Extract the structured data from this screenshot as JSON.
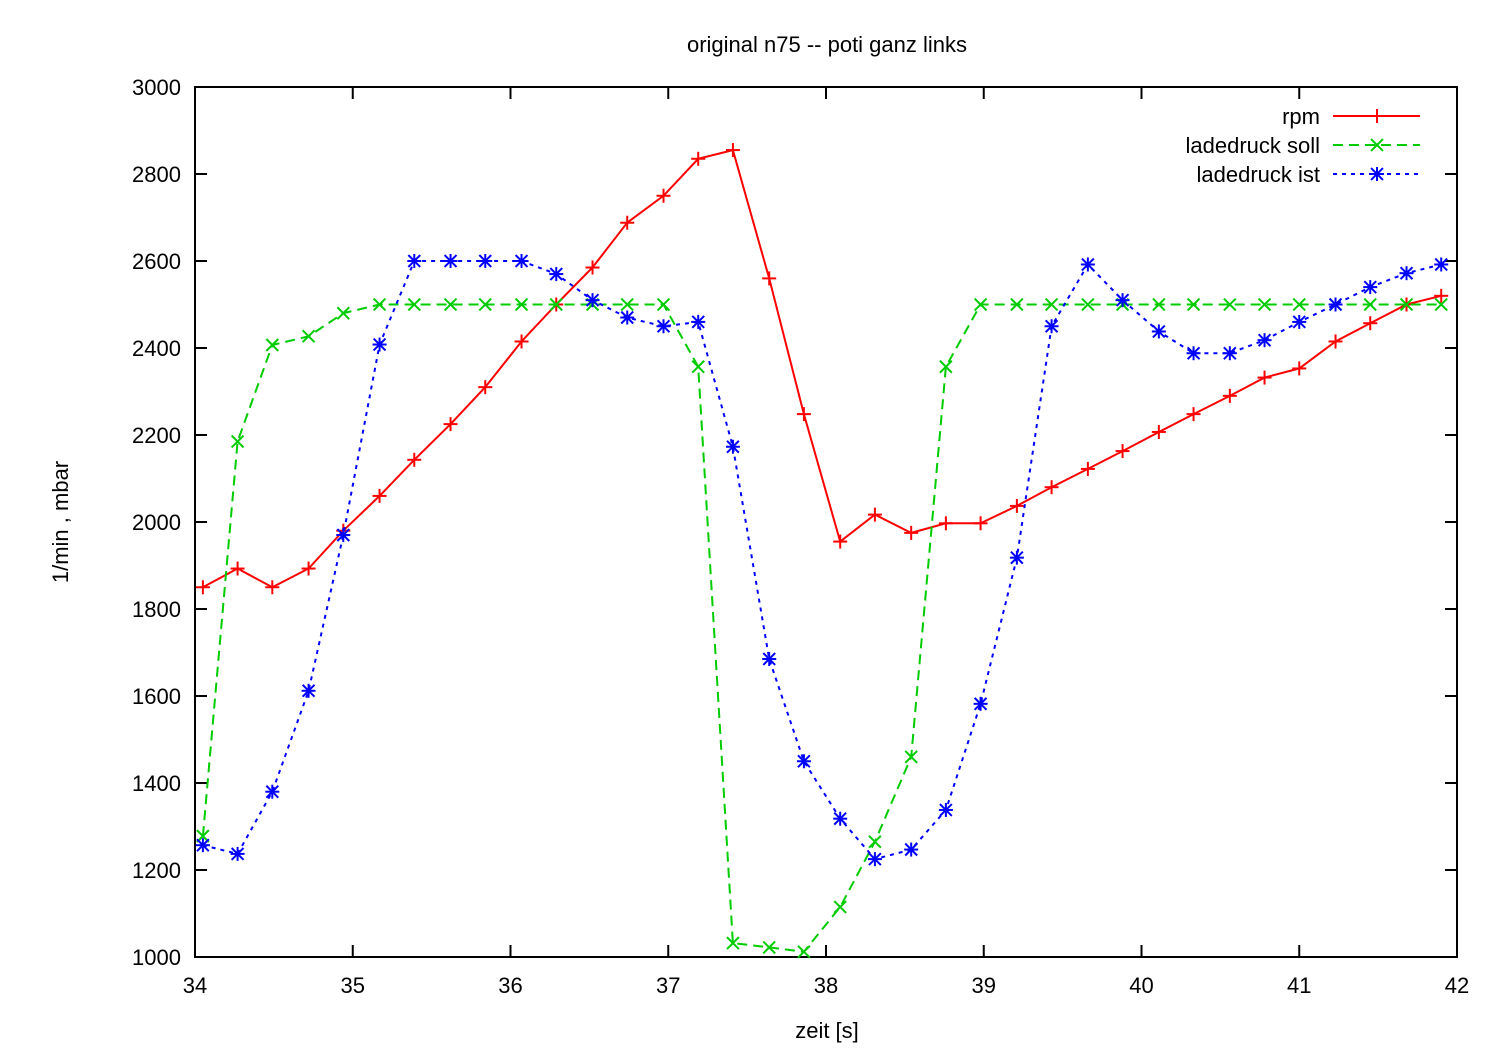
{
  "chart_data": {
    "type": "line",
    "title": "original n75 -- poti ganz links",
    "xlabel": "zeit [s]",
    "ylabel": "1/min , mbar",
    "xlim": [
      34,
      42
    ],
    "ylim": [
      1000,
      3000
    ],
    "xticks": [
      34,
      35,
      36,
      37,
      38,
      39,
      40,
      41,
      42
    ],
    "yticks": [
      1000,
      1200,
      1400,
      1600,
      1800,
      2000,
      2200,
      2400,
      2600,
      2800,
      3000
    ],
    "grid": false,
    "legend_position": "top-right",
    "series": [
      {
        "name": "rpm",
        "color": "#ff0000",
        "dash": "solid",
        "marker": "plus",
        "points": [
          [
            34.05,
            1850
          ],
          [
            34.27,
            1893
          ],
          [
            34.49,
            1850
          ],
          [
            34.72,
            1893
          ],
          [
            34.94,
            1980
          ],
          [
            35.17,
            2060
          ],
          [
            35.39,
            2143
          ],
          [
            35.62,
            2225
          ],
          [
            35.84,
            2310
          ],
          [
            36.07,
            2415
          ],
          [
            36.29,
            2500
          ],
          [
            36.52,
            2585
          ],
          [
            36.74,
            2688
          ],
          [
            36.97,
            2750
          ],
          [
            37.19,
            2835
          ],
          [
            37.41,
            2855
          ],
          [
            37.64,
            2560
          ],
          [
            37.86,
            2248
          ],
          [
            38.09,
            1955
          ],
          [
            38.31,
            2017
          ],
          [
            38.54,
            1975
          ],
          [
            38.76,
            1997
          ],
          [
            38.98,
            1997
          ],
          [
            39.21,
            2037
          ],
          [
            39.43,
            2080
          ],
          [
            39.66,
            2122
          ],
          [
            39.88,
            2163
          ],
          [
            40.11,
            2207
          ],
          [
            40.33,
            2248
          ],
          [
            40.56,
            2290
          ],
          [
            40.78,
            2332
          ],
          [
            41.0,
            2353
          ],
          [
            41.23,
            2415
          ],
          [
            41.45,
            2457
          ],
          [
            41.68,
            2500
          ],
          [
            41.9,
            2520
          ]
        ]
      },
      {
        "name": "ladedruck soll",
        "color": "#00cc00",
        "dash": "dashed",
        "marker": "cross",
        "points": [
          [
            34.05,
            1278
          ],
          [
            34.27,
            2185
          ],
          [
            34.49,
            2407
          ],
          [
            34.72,
            2427
          ],
          [
            34.94,
            2480
          ],
          [
            35.17,
            2500
          ],
          [
            35.39,
            2500
          ],
          [
            35.62,
            2500
          ],
          [
            35.84,
            2500
          ],
          [
            36.07,
            2500
          ],
          [
            36.29,
            2500
          ],
          [
            36.52,
            2500
          ],
          [
            36.74,
            2500
          ],
          [
            36.97,
            2500
          ],
          [
            37.19,
            2357
          ],
          [
            37.41,
            1032
          ],
          [
            37.64,
            1022
          ],
          [
            37.86,
            1012
          ],
          [
            38.09,
            1115
          ],
          [
            38.31,
            1265
          ],
          [
            38.54,
            1460
          ],
          [
            38.76,
            2357
          ],
          [
            38.98,
            2500
          ],
          [
            39.21,
            2500
          ],
          [
            39.43,
            2500
          ],
          [
            39.66,
            2500
          ],
          [
            39.88,
            2500
          ],
          [
            40.11,
            2500
          ],
          [
            40.33,
            2500
          ],
          [
            40.56,
            2500
          ],
          [
            40.78,
            2500
          ],
          [
            41.0,
            2500
          ],
          [
            41.23,
            2500
          ],
          [
            41.45,
            2500
          ],
          [
            41.68,
            2500
          ],
          [
            41.9,
            2500
          ]
        ]
      },
      {
        "name": "ladedruck ist",
        "color": "#0000ff",
        "dash": "dotted",
        "marker": "star",
        "points": [
          [
            34.05,
            1257
          ],
          [
            34.27,
            1237
          ],
          [
            34.49,
            1380
          ],
          [
            34.72,
            1612
          ],
          [
            34.94,
            1970
          ],
          [
            35.17,
            2408
          ],
          [
            35.39,
            2600
          ],
          [
            35.62,
            2600
          ],
          [
            35.84,
            2600
          ],
          [
            36.07,
            2600
          ],
          [
            36.29,
            2570
          ],
          [
            36.52,
            2510
          ],
          [
            36.74,
            2470
          ],
          [
            36.97,
            2450
          ],
          [
            37.19,
            2460
          ],
          [
            37.41,
            2173
          ],
          [
            37.64,
            1685
          ],
          [
            37.86,
            1450
          ],
          [
            38.09,
            1318
          ],
          [
            38.31,
            1225
          ],
          [
            38.54,
            1247
          ],
          [
            38.76,
            1338
          ],
          [
            38.98,
            1582
          ],
          [
            39.21,
            1918
          ],
          [
            39.43,
            2450
          ],
          [
            39.66,
            2592
          ],
          [
            39.88,
            2510
          ],
          [
            40.11,
            2438
          ],
          [
            40.33,
            2388
          ],
          [
            40.56,
            2388
          ],
          [
            40.78,
            2418
          ],
          [
            41.0,
            2460
          ],
          [
            41.23,
            2500
          ],
          [
            41.45,
            2540
          ],
          [
            41.68,
            2572
          ],
          [
            41.9,
            2592
          ]
        ]
      }
    ]
  }
}
